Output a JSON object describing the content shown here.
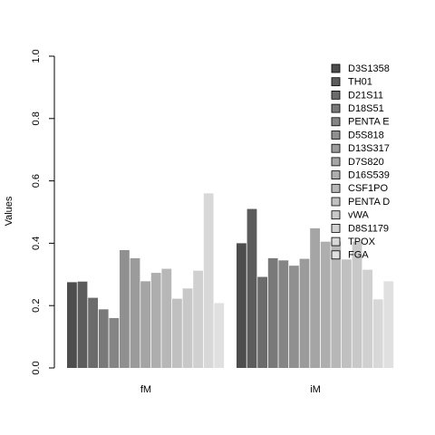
{
  "chart_data": {
    "type": "bar",
    "ylabel": "Values",
    "ylim": [
      0,
      1
    ],
    "yticks": [
      "0.0",
      "0.2",
      "0.4",
      "0.6",
      "0.8",
      "1.0"
    ],
    "categories": [
      "fM",
      "iM"
    ],
    "legend_position": "top-right",
    "series": [
      {
        "name": "D3S1358",
        "color": "#4d4d4d",
        "values": [
          0.275,
          0.4
        ]
      },
      {
        "name": "TH01",
        "color": "#5c5c5c",
        "values": [
          0.277,
          0.51
        ]
      },
      {
        "name": "D21S11",
        "color": "#6b6b6b",
        "values": [
          0.225,
          0.292
        ]
      },
      {
        "name": "D18S51",
        "color": "#797979",
        "values": [
          0.188,
          0.352
        ]
      },
      {
        "name": "PENTA E",
        "color": "#858585",
        "values": [
          0.16,
          0.345
        ]
      },
      {
        "name": "D5S818",
        "color": "#909090",
        "values": [
          0.378,
          0.328
        ]
      },
      {
        "name": "D13S317",
        "color": "#9b9b9b",
        "values": [
          0.352,
          0.35
        ]
      },
      {
        "name": "D7S820",
        "color": "#a5a5a5",
        "values": [
          0.278,
          0.448
        ]
      },
      {
        "name": "D16S539",
        "color": "#aeaeae",
        "values": [
          0.305,
          0.405
        ]
      },
      {
        "name": "CSF1PO",
        "color": "#b7b7b7",
        "values": [
          0.318,
          0.405
        ]
      },
      {
        "name": "PENTA D",
        "color": "#c0c0c0",
        "values": [
          0.222,
          0.348
        ]
      },
      {
        "name": "vWA",
        "color": "#c8c8c8",
        "values": [
          0.255,
          0.405
        ]
      },
      {
        "name": "D8S1179",
        "color": "#d0d0d0",
        "values": [
          0.312,
          0.315
        ]
      },
      {
        "name": "TPOX",
        "color": "#d8d8d8",
        "values": [
          0.56,
          0.22
        ]
      },
      {
        "name": "FGA",
        "color": "#e0e0e0",
        "values": [
          0.208,
          0.278
        ]
      }
    ]
  }
}
